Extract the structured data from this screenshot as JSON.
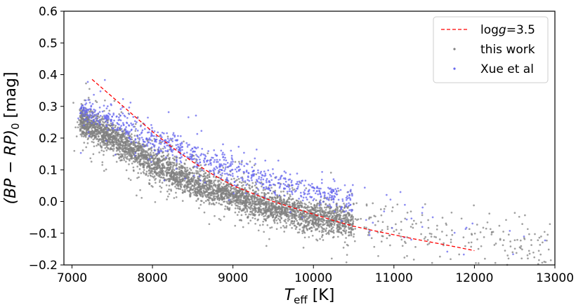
{
  "chart_data": {
    "type": "scatter",
    "xlabel": {
      "main": "T",
      "sub": "eff",
      "rest": " [K]"
    },
    "ylabel": {
      "text": "(BP − RP)",
      "sub": "0",
      "rest": " [mag]"
    },
    "xlim": [
      6900,
      13000
    ],
    "ylim": [
      -0.2,
      0.6
    ],
    "xticks": [
      7000,
      8000,
      9000,
      10000,
      11000,
      12000,
      13000
    ],
    "yticks": [
      -0.2,
      -0.1,
      0.0,
      0.1,
      0.2,
      0.3,
      0.4,
      0.5,
      0.6
    ],
    "ytick_labels": [
      "−0.2",
      "−0.1",
      "0.0",
      "0.1",
      "0.2",
      "0.3",
      "0.4",
      "0.5",
      "0.6"
    ],
    "grid": false,
    "legend_position": "top-right",
    "series": [
      {
        "name": "log g=3.5",
        "legend_label": {
          "pre": "log",
          "italic": "g",
          "post": "=3.5"
        },
        "kind": "line",
        "style": "dashed",
        "color": "#ff0000",
        "x": [
          7250,
          7500,
          7750,
          8000,
          8250,
          8500,
          8750,
          9000,
          9250,
          9500,
          9750,
          10000,
          10250,
          10500,
          10750,
          11000,
          11250,
          11500,
          11750,
          12000
        ],
        "y": [
          0.385,
          0.33,
          0.275,
          0.22,
          0.17,
          0.125,
          0.085,
          0.05,
          0.025,
          0.0,
          -0.02,
          -0.04,
          -0.06,
          -0.078,
          -0.092,
          -0.105,
          -0.118,
          -0.13,
          -0.142,
          -0.155
        ]
      },
      {
        "name": "this work",
        "kind": "scatter",
        "color": "#808080",
        "ridge": {
          "x": [
            7000,
            7500,
            8000,
            8500,
            9000,
            9500,
            10000,
            10300
          ],
          "y": [
            0.27,
            0.2,
            0.12,
            0.06,
            0.02,
            -0.02,
            -0.05,
            -0.06
          ]
        }
      },
      {
        "name": "Xue et al",
        "kind": "scatter",
        "color": "#6666ee",
        "ridge": {
          "x": [
            7000,
            7500,
            8000,
            8500,
            9000,
            9500,
            10000,
            10300
          ],
          "y": [
            0.3,
            0.26,
            0.19,
            0.15,
            0.1,
            0.06,
            0.03,
            0.01
          ]
        }
      }
    ]
  }
}
